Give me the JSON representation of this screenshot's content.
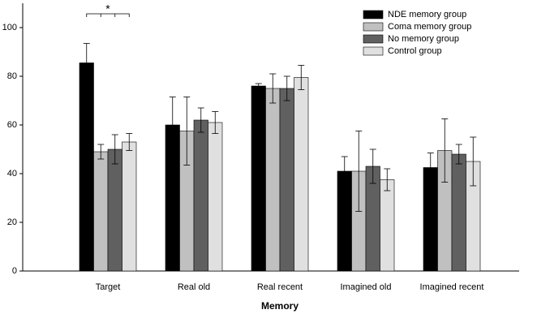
{
  "chart_data": {
    "type": "bar",
    "x_label": "Memory",
    "annotation": "*",
    "categories": [
      "Target",
      "Real old",
      "Real recent",
      "Imagined old",
      "Imagined recent"
    ],
    "series": [
      {
        "name": "NDE memory group",
        "color": "#000000",
        "values": [
          85.5,
          60,
          76,
          41,
          42.5
        ],
        "errors": [
          8,
          11.5,
          1,
          6,
          6
        ]
      },
      {
        "name": "Coma memory group",
        "color": "#c0c0c0",
        "values": [
          49,
          57.5,
          75,
          41,
          49.5
        ],
        "errors": [
          3,
          14,
          6,
          16.5,
          13
        ]
      },
      {
        "name": "No memory group",
        "color": "#606060",
        "values": [
          50,
          62,
          75,
          43,
          48
        ],
        "errors": [
          6,
          5,
          5,
          7,
          4
        ]
      },
      {
        "name": "Control group",
        "color": "#e0e0e0",
        "values": [
          53,
          61,
          79.5,
          37.5,
          45
        ],
        "errors": [
          3.5,
          4.5,
          5,
          4.5,
          10
        ]
      }
    ],
    "ylim": [
      0,
      110
    ],
    "yticks": [
      0,
      20,
      40,
      60,
      80,
      100
    ],
    "grid": false,
    "legend": "top-right"
  }
}
